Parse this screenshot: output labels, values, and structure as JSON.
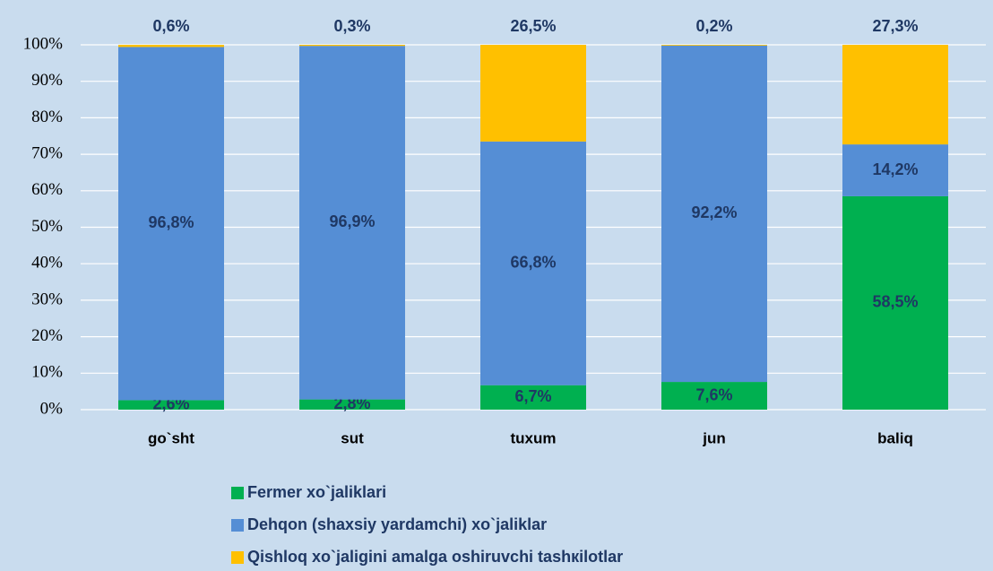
{
  "chart_data": {
    "type": "bar",
    "stacked": true,
    "categories": [
      "go`sht",
      "sut",
      "tuxum",
      "jun",
      "baliq"
    ],
    "series": [
      {
        "name": "Fermer xo`jaliklari",
        "color": "#00b050",
        "values": [
          2.6,
          2.8,
          6.7,
          7.6,
          58.5
        ],
        "value_labels": [
          "2,6%",
          "2,8%",
          "6,7%",
          "7,6%",
          "58,5%"
        ]
      },
      {
        "name": "Dehqon (shaxsiy yardamchi) xo`jaliklar",
        "color": "#558ed5",
        "values": [
          96.8,
          96.9,
          66.8,
          92.2,
          14.2
        ],
        "value_labels": [
          "96,8%",
          "96,9%",
          "66,8%",
          "92,2%",
          "14,2%"
        ]
      },
      {
        "name": "Qishloq xo`jaligini amalga oshiruvchi tashкilotlar",
        "color": "#ffc000",
        "values": [
          0.6,
          0.3,
          26.5,
          0.2,
          27.3
        ],
        "value_labels": [
          "0,6%",
          "0,3%",
          "26,5%",
          "0,2%",
          "27,3%"
        ]
      }
    ],
    "ylim": [
      0,
      100
    ],
    "yticks": [
      {
        "value": 0,
        "label": "0%"
      },
      {
        "value": 10,
        "label": "10%"
      },
      {
        "value": 20,
        "label": "20%"
      },
      {
        "value": 30,
        "label": "30%"
      },
      {
        "value": 40,
        "label": "40%"
      },
      {
        "value": 50,
        "label": "50%"
      },
      {
        "value": 60,
        "label": "60%"
      },
      {
        "value": 70,
        "label": "70%"
      },
      {
        "value": 80,
        "label": "80%"
      },
      {
        "value": 90,
        "label": "90%"
      },
      {
        "value": 100,
        "label": "100%"
      }
    ],
    "grid": true
  }
}
